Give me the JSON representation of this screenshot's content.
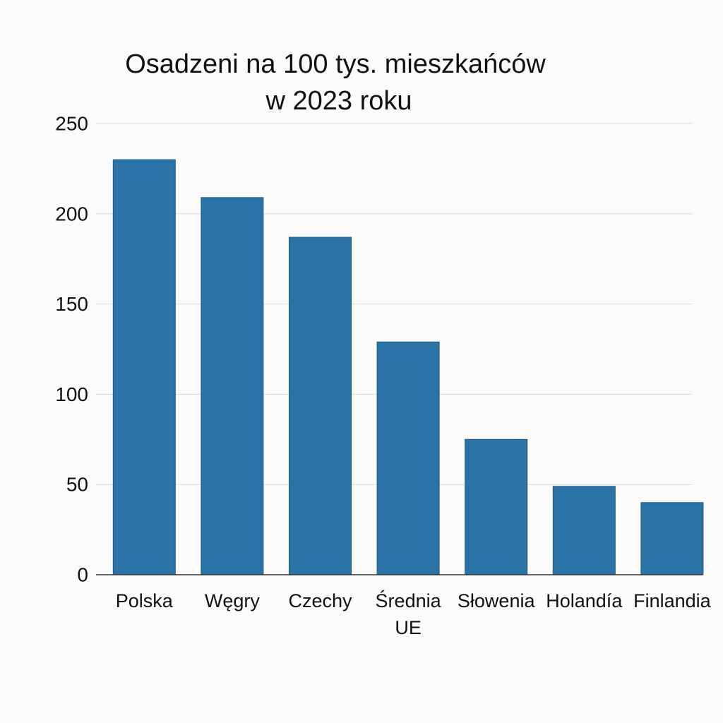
{
  "chart_data": {
    "type": "bar",
    "title_lines": [
      "Osadzeni na 100 tys. mieszkańców",
      "w 2023 roku"
    ],
    "categories": [
      "Polska",
      "Węgry",
      "Czechy",
      "Średnia UE",
      "Słowenia",
      "Holandía",
      "Finlandia"
    ],
    "category_label_lines": [
      [
        "Polska"
      ],
      [
        "Węgry"
      ],
      [
        "Czechy"
      ],
      [
        "Średnia",
        "UE"
      ],
      [
        "Słowenia"
      ],
      [
        "Holandía"
      ],
      [
        "Finlandia"
      ]
    ],
    "values": [
      230,
      209,
      187,
      129,
      75,
      49,
      40
    ],
    "ylim": [
      0,
      250
    ],
    "yticks": [
      0,
      50,
      100,
      150,
      200,
      250
    ],
    "xlabel": "",
    "ylabel": "",
    "grid": true,
    "legend": "none",
    "bar_color": "#2a73a6",
    "bar_edge_color": "#1c5a87",
    "grid_color": "#d9d9d9",
    "axis_color": "#333333"
  }
}
